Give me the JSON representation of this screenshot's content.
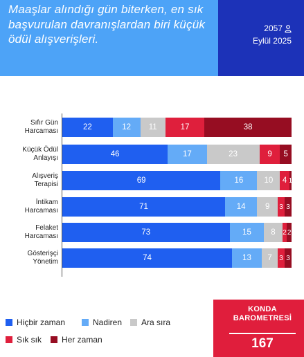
{
  "header": {
    "title": "Maaşlar alındığı gün biterken, en sık başvurulan davranışlardan biri küçük ödül alışverişleri.",
    "count": "2057",
    "date": "Eylül 2025"
  },
  "colors": {
    "header_light": "#4da3f7",
    "header_dark": "#1c32b8",
    "brand": "#e01e3c"
  },
  "chart_data": {
    "type": "bar",
    "orientation": "horizontal",
    "stacked": true,
    "categories": [
      "Sıfır Gün\nHarcaması",
      "Küçük Ödül\nAnlayışı",
      "Alışveriş\nTerapisi",
      "İntikam\nHarcaması",
      "Felaket\nHarcaması",
      "Gösterişçi\nYönetim"
    ],
    "series": [
      {
        "name": "Hiçbir zaman",
        "color": "#1f5ff0",
        "values": [
          22,
          46,
          69,
          71,
          73,
          74
        ]
      },
      {
        "name": "Nadiren",
        "color": "#64abf7",
        "values": [
          12,
          17,
          16,
          14,
          15,
          13
        ]
      },
      {
        "name": "Ara sıra",
        "color": "#c9c9c9",
        "values": [
          11,
          23,
          10,
          9,
          8,
          7
        ]
      },
      {
        "name": "Sık sık",
        "color": "#df1f3c",
        "values": [
          17,
          9,
          4,
          3,
          2,
          3
        ]
      },
      {
        "name": "Her zaman",
        "color": "#960d22",
        "values": [
          38,
          5,
          1,
          3,
          2,
          3
        ]
      }
    ],
    "xlim": [
      0,
      100
    ],
    "grid": false,
    "legend_position": "bottom-left"
  },
  "brand": {
    "name": "KONDA\nBAROMETRESİ",
    "page": "167"
  }
}
